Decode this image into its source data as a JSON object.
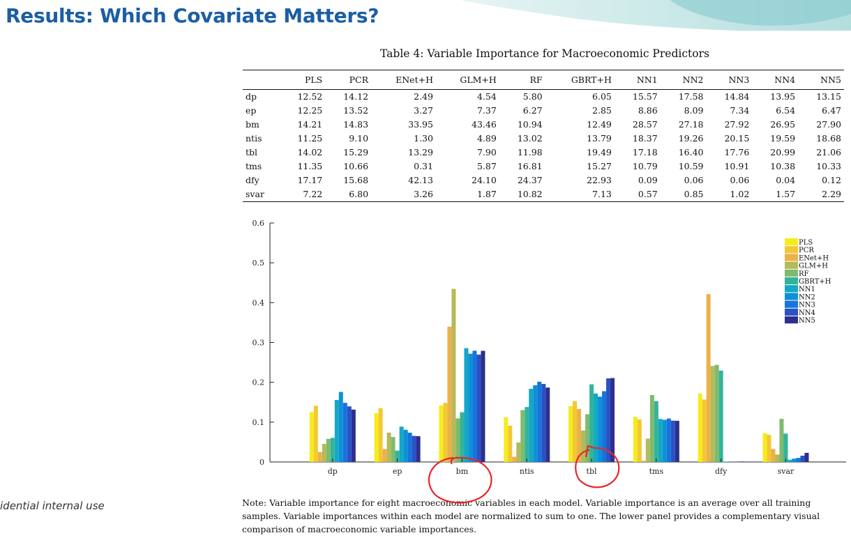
{
  "slide": {
    "title": "Results: Which Covariate Matters?",
    "footer_text": "idential internal use"
  },
  "table": {
    "caption": "Table 4: Variable Importance for Macroeconomic Predictors",
    "columns": [
      "PLS",
      "PCR",
      "ENet+H",
      "GLM+H",
      "RF",
      "GBRT+H",
      "NN1",
      "NN2",
      "NN3",
      "NN4",
      "NN5"
    ],
    "rows": [
      {
        "label": "dp",
        "values": [
          "12.52",
          "14.12",
          "2.49",
          "4.54",
          "5.80",
          "6.05",
          "15.57",
          "17.58",
          "14.84",
          "13.95",
          "13.15"
        ]
      },
      {
        "label": "ep",
        "values": [
          "12.25",
          "13.52",
          "3.27",
          "7.37",
          "6.27",
          "2.85",
          "8.86",
          "8.09",
          "7.34",
          "6.54",
          "6.47"
        ]
      },
      {
        "label": "bm",
        "values": [
          "14.21",
          "14.83",
          "33.95",
          "43.46",
          "10.94",
          "12.49",
          "28.57",
          "27.18",
          "27.92",
          "26.95",
          "27.90"
        ]
      },
      {
        "label": "ntis",
        "values": [
          "11.25",
          "9.10",
          "1.30",
          "4.89",
          "13.02",
          "13.79",
          "18.37",
          "19.26",
          "20.15",
          "19.59",
          "18.68"
        ]
      },
      {
        "label": "tbl",
        "values": [
          "14.02",
          "15.29",
          "13.29",
          "7.90",
          "11.98",
          "19.49",
          "17.18",
          "16.40",
          "17.76",
          "20.99",
          "21.06"
        ]
      },
      {
        "label": "tms",
        "values": [
          "11.35",
          "10.66",
          "0.31",
          "5.87",
          "16.81",
          "15.27",
          "10.79",
          "10.59",
          "10.91",
          "10.38",
          "10.33"
        ]
      },
      {
        "label": "dfy",
        "values": [
          "17.17",
          "15.68",
          "42.13",
          "24.10",
          "24.37",
          "22.93",
          "0.09",
          "0.06",
          "0.06",
          "0.04",
          "0.12"
        ]
      },
      {
        "label": "svar",
        "values": [
          "7.22",
          "6.80",
          "3.26",
          "1.87",
          "10.82",
          "7.13",
          "0.57",
          "0.85",
          "1.02",
          "1.57",
          "2.29"
        ]
      }
    ]
  },
  "chart_data": {
    "type": "bar",
    "categories": [
      "dp",
      "ep",
      "bm",
      "ntis",
      "tbl",
      "tms",
      "dfy",
      "svar"
    ],
    "ylim": [
      0,
      0.6
    ],
    "yticks": [
      "0",
      "0.1",
      "0.2",
      "0.3",
      "0.4",
      "0.5",
      "0.6"
    ],
    "legend_position": "top-right",
    "series": [
      {
        "name": "PLS",
        "color": "#f5ec1c",
        "values": [
          0.1252,
          0.1225,
          0.1421,
          0.1125,
          0.1402,
          0.1135,
          0.1717,
          0.0722
        ]
      },
      {
        "name": "PCR",
        "color": "#f3c833",
        "values": [
          0.1412,
          0.1352,
          0.1483,
          0.091,
          0.1529,
          0.1066,
          0.1568,
          0.068
        ]
      },
      {
        "name": "ENet+H",
        "color": "#ebb14a",
        "values": [
          0.0249,
          0.0327,
          0.3395,
          0.013,
          0.1329,
          0.0031,
          0.4213,
          0.0326
        ]
      },
      {
        "name": "GLM+H",
        "color": "#b5ba5a",
        "values": [
          0.0454,
          0.0737,
          0.4346,
          0.0489,
          0.079,
          0.0587,
          0.241,
          0.0187
        ]
      },
      {
        "name": "RF",
        "color": "#7fbb6e",
        "values": [
          0.058,
          0.0627,
          0.1094,
          0.1302,
          0.1198,
          0.1681,
          0.2437,
          0.1082
        ]
      },
      {
        "name": "GBRT+H",
        "color": "#33b49a",
        "values": [
          0.0605,
          0.0285,
          0.1249,
          0.1379,
          0.1949,
          0.1527,
          0.2293,
          0.0713
        ]
      },
      {
        "name": "NN1",
        "color": "#13a8c6",
        "values": [
          0.1557,
          0.0886,
          0.2857,
          0.1837,
          0.1718,
          0.1079,
          0.0009,
          0.0057
        ]
      },
      {
        "name": "NN2",
        "color": "#0f90d6",
        "values": [
          0.1758,
          0.0809,
          0.2718,
          0.1926,
          0.164,
          0.1059,
          0.0006,
          0.0085
        ]
      },
      {
        "name": "NN3",
        "color": "#1674dc",
        "values": [
          0.1484,
          0.0734,
          0.2792,
          0.2015,
          0.1776,
          0.1091,
          0.0006,
          0.0102
        ]
      },
      {
        "name": "NN4",
        "color": "#2b52c4",
        "values": [
          0.1395,
          0.0654,
          0.2695,
          0.1959,
          0.2099,
          0.1038,
          0.0004,
          0.0157
        ]
      },
      {
        "name": "NN5",
        "color": "#2d2f8e",
        "values": [
          0.1315,
          0.0647,
          0.279,
          0.1868,
          0.2106,
          0.1033,
          0.0012,
          0.0229
        ]
      }
    ]
  },
  "note": "Note: Variable importance for eight macroeconomic variables in each model. Variable importance is an average over all training samples. Variable importances within each model are normalized to sum to one. The lower panel provides a complementary visual comparison of macroeconomic variable importances.",
  "annotations": {
    "circled_categories": [
      "bm",
      "tbl"
    ],
    "circle_color": "#e8262a"
  }
}
